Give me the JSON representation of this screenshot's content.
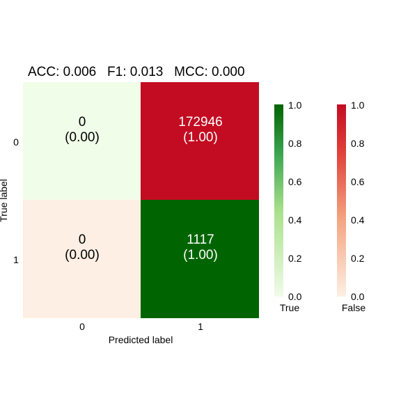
{
  "chart_data": {
    "type": "heatmap",
    "title": "ACC: 0.006   F1: 0.013   MCC: 0.000",
    "xlabel": "Predicted label",
    "ylabel": "True label",
    "x_ticks": [
      "0",
      "1"
    ],
    "y_ticks": [
      "0",
      "1"
    ],
    "cells": [
      [
        {
          "count": "0",
          "ratio": "(0.00)",
          "correct": true,
          "normalized": 0.0
        },
        {
          "count": "172946",
          "ratio": "(1.00)",
          "correct": false,
          "normalized": 1.0
        }
      ],
      [
        {
          "count": "0",
          "ratio": "(0.00)",
          "correct": false,
          "normalized": 0.0
        },
        {
          "count": "1117",
          "ratio": "(1.00)",
          "correct": true,
          "normalized": 1.0
        }
      ]
    ],
    "colorbars": [
      {
        "label": "True",
        "cmap": "Greens",
        "low_color": "#f0fbe9",
        "mid_color": "#a9e08a",
        "high_color": "#006400",
        "ticks": [
          "0.0",
          "0.2",
          "0.4",
          "0.6",
          "0.8",
          "1.0"
        ]
      },
      {
        "label": "False",
        "cmap": "Reds",
        "low_color": "#fdefe3",
        "mid_color": "#f4a582",
        "high_color": "#c30c22",
        "ticks": [
          "0.0",
          "0.2",
          "0.4",
          "0.6",
          "0.8",
          "1.0"
        ]
      }
    ]
  }
}
